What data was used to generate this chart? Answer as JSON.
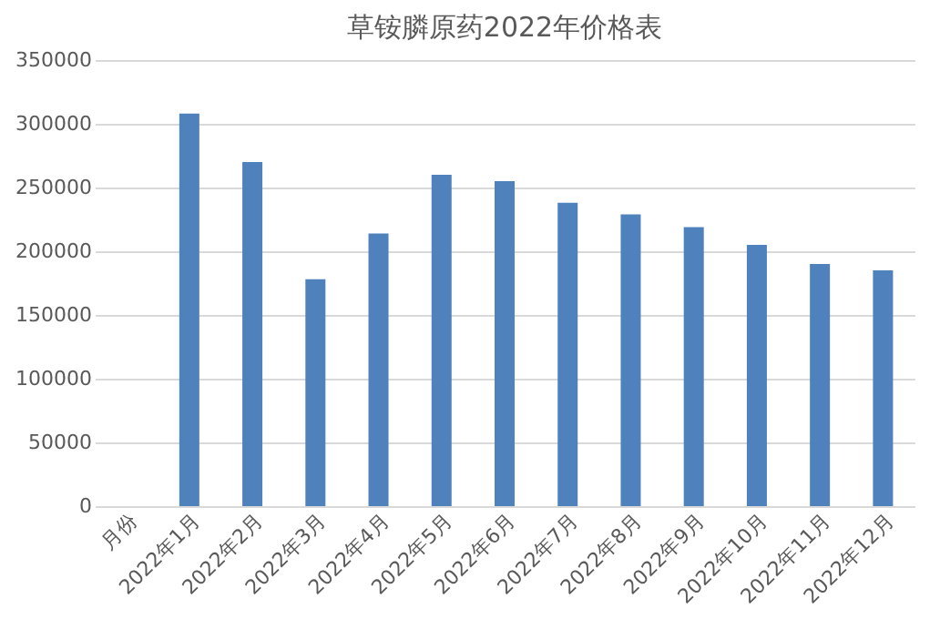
{
  "chart_data": {
    "type": "bar",
    "title": "草铵膦原药2022年价格表",
    "categories": [
      "月份",
      "2022年1月",
      "2022年2月",
      "2022年3月",
      "2022年4月",
      "2022年5月",
      "2022年6月",
      "2022年7月",
      "2022年8月",
      "2022年9月",
      "2022年10月",
      "2022年11月",
      "2022年12月"
    ],
    "values": [
      null,
      308000,
      270000,
      178000,
      214000,
      260000,
      255000,
      238000,
      229000,
      219000,
      205000,
      190000,
      185000
    ],
    "color": "#4f81bd",
    "ylim": [
      0,
      350000
    ],
    "yticks": [
      0,
      50000,
      100000,
      150000,
      200000,
      250000,
      300000,
      350000
    ],
    "grid": "y"
  }
}
